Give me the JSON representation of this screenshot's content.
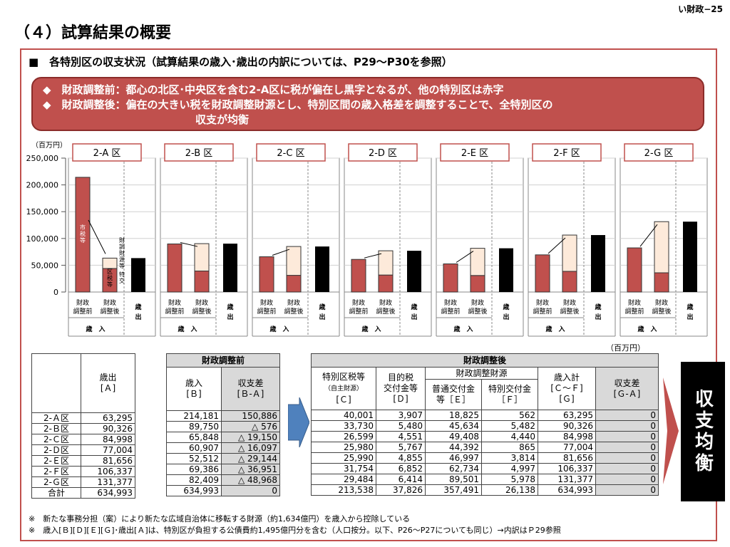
{
  "page_number": "い財政−25",
  "title": "（４）試算結果の概要",
  "subtitle": "■　各特別区の収支状況（試算結果の歳入･歳出の内訳については、P29～P30を参照）",
  "notes": [
    "◆　財政調整前：都心の北区･中央区を含む2-A区に税が偏在し黒字となるが、他の特別区は赤字",
    "◆　財政調整後：偏在の大きい税を財政調整財源とし、特別区間の歳入格差を調整することで、全特別区の",
    "収支が均衡"
  ],
  "chart_unit": "（百万円）",
  "table_unit": "（百万円）",
  "bar_labels": {
    "before": "財政\n調整前",
    "after": "財政\n調整後",
    "expense": "歳\n出",
    "revenue_group": "歳　入",
    "tax_label": "市税等",
    "fund_label": "財調財源等",
    "tax_label2": "区税等",
    "special_label": "特交"
  },
  "chart_data": {
    "type": "bar",
    "ylim": [
      0,
      250000
    ],
    "yticks": [
      0,
      50000,
      100000,
      150000,
      200000,
      250000
    ],
    "ytick_labels": [
      "0",
      "50,000",
      "100,000",
      "150,000",
      "200,000",
      "250,000"
    ],
    "panels": [
      {
        "name": "2-A 区",
        "before": 214181,
        "after_base": 43908,
        "after_top": 63295,
        "expense": 63295
      },
      {
        "name": "2-B 区",
        "before": 89750,
        "after_base": 39210,
        "after_top": 90326,
        "expense": 90326
      },
      {
        "name": "2-C 区",
        "before": 65848,
        "after_base": 31150,
        "after_top": 84998,
        "expense": 84998
      },
      {
        "name": "2-D 区",
        "before": 60907,
        "after_base": 31747,
        "after_top": 77004,
        "expense": 77004
      },
      {
        "name": "2-E 区",
        "before": 52512,
        "after_base": 30845,
        "after_top": 81656,
        "expense": 81656
      },
      {
        "name": "2-F 区",
        "before": 69386,
        "after_base": 38606,
        "after_top": 106337,
        "expense": 106337
      },
      {
        "name": "2-G 区",
        "before": 82409,
        "after_base": 35898,
        "after_top": 131377,
        "expense": 131377
      }
    ],
    "colors": {
      "before": "#c0504d",
      "after_base": "#c0504d",
      "after_top": "#fdeada",
      "expense": "#000000"
    }
  },
  "table": {
    "header_before": "財政調整前",
    "header_after": "財政調整後",
    "col_expense": "歳出\n[Ａ]",
    "col_rev_before": "歳入\n[Ｂ]",
    "col_bal_before": "収支差\n[Ｂ-Ａ]",
    "col_tax": "特別区税等",
    "col_tax_sub": "（自主財源）",
    "col_tax_code": "[Ｃ]",
    "col_purpose": "目的税\n交付金等\n[Ｄ]",
    "col_fund": "財政調整財源",
    "col_general": "普通交付金\n等［Ｅ］",
    "col_special": "特別交付金\n［Ｆ］",
    "col_rev_total": "歳入計\n[Ｃ～Ｆ]\n[Ｇ]",
    "col_bal_after": "収支差\n[Ｇ-Ａ]",
    "rows": [
      {
        "ward": "2-Ａ区",
        "A": "63,295",
        "B": "214,181",
        "BA": "150,886",
        "C": "40,001",
        "D": "3,907",
        "E": "18,825",
        "F": "562",
        "G": "63,295",
        "GA": "0"
      },
      {
        "ward": "2-Ｂ区",
        "A": "90,326",
        "B": "89,750",
        "BA": "△ 576",
        "C": "33,730",
        "D": "5,480",
        "E": "45,634",
        "F": "5,482",
        "G": "90,326",
        "GA": "0"
      },
      {
        "ward": "2-Ｃ区",
        "A": "84,998",
        "B": "65,848",
        "BA": "△ 19,150",
        "C": "26,599",
        "D": "4,551",
        "E": "49,408",
        "F": "4,440",
        "G": "84,998",
        "GA": "0"
      },
      {
        "ward": "2-Ｄ区",
        "A": "77,004",
        "B": "60,907",
        "BA": "△ 16,097",
        "C": "25,980",
        "D": "5,767",
        "E": "44,392",
        "F": "865",
        "G": "77,004",
        "GA": "0"
      },
      {
        "ward": "2-Ｅ区",
        "A": "81,656",
        "B": "52,512",
        "BA": "△ 29,144",
        "C": "25,990",
        "D": "4,855",
        "E": "46,997",
        "F": "3,814",
        "G": "81,656",
        "GA": "0"
      },
      {
        "ward": "2-Ｆ区",
        "A": "106,337",
        "B": "69,386",
        "BA": "△ 36,951",
        "C": "31,754",
        "D": "6,852",
        "E": "62,734",
        "F": "4,997",
        "G": "106,337",
        "GA": "0"
      },
      {
        "ward": "2-Ｇ区",
        "A": "131,377",
        "B": "82,409",
        "BA": "△ 48,968",
        "C": "29,484",
        "D": "6,414",
        "E": "89,501",
        "F": "5,978",
        "G": "131,377",
        "GA": "0"
      },
      {
        "ward": "合計",
        "A": "634,993",
        "B": "634,993",
        "BA": "0",
        "C": "213,538",
        "D": "37,826",
        "E": "357,491",
        "F": "26,138",
        "G": "634,993",
        "GA": "0"
      }
    ]
  },
  "side_label": "収支均衡",
  "footnotes": [
    "※　新たな事務分担（案）により新たな広域自治体に移転する財源（約1,634億円）を歳入から控除している",
    "※　歳入[Ｂ][Ｄ][Ｅ][Ｇ]･歳出[Ａ]は、特別区が負担する公債費約1,495億円分を含む（人口按分。以下、P26～P27についても同じ）→内訳はＰ29参照"
  ]
}
